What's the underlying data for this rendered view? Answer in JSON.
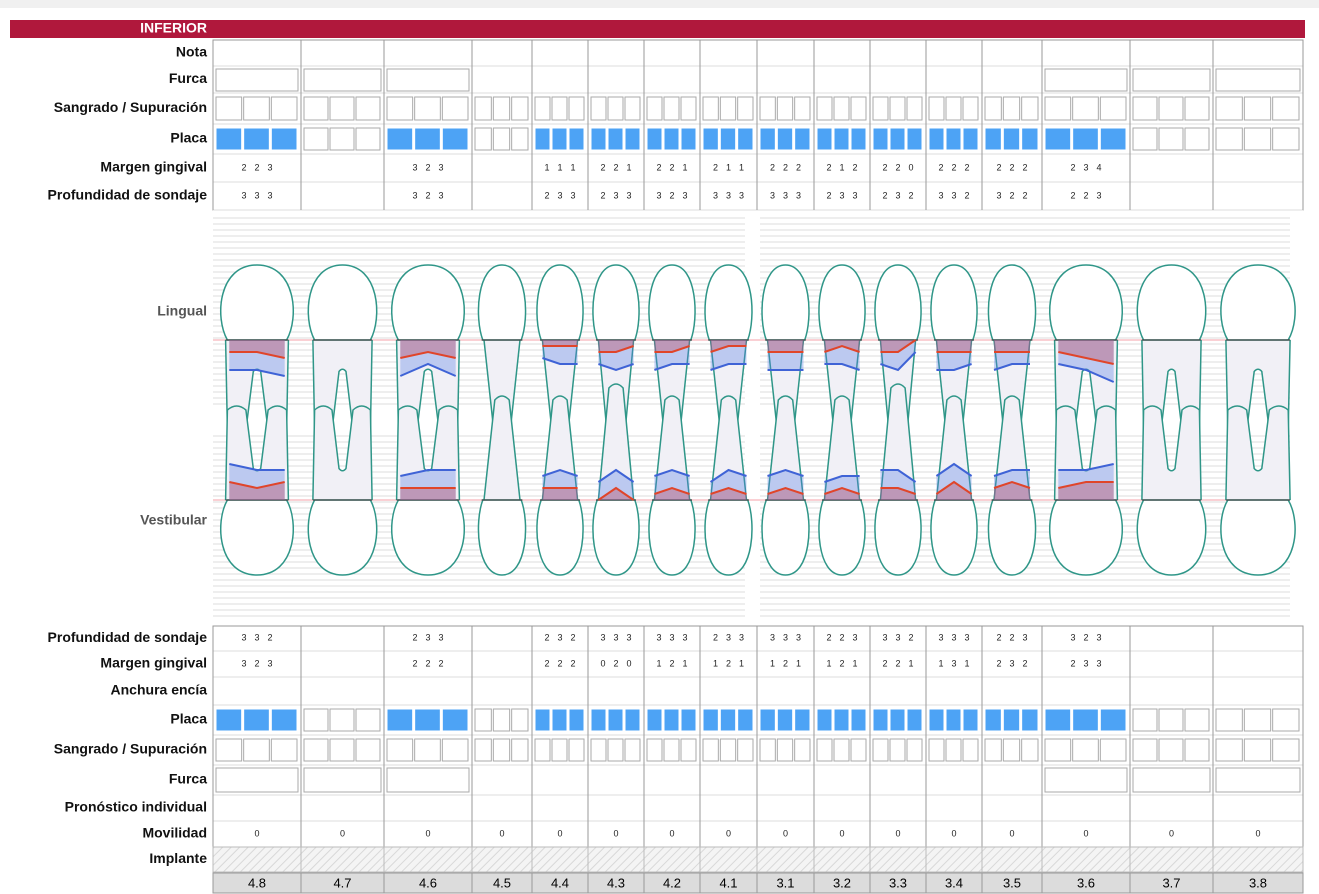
{
  "header": "INFERIOR",
  "top_rows": {
    "nota": "Nota",
    "furca": "Furca",
    "sangrado": "Sangrado / Supuración",
    "placa": "Placa",
    "margen": "Margen gingival",
    "profundidad": "Profundidad de sondaje"
  },
  "lingual": "Lingual",
  "vestibular": "Vestibular",
  "bottom_rows": {
    "profundidad": "Profundidad de sondaje",
    "margen": "Margen gingival",
    "anchura": "Anchura encía",
    "placa": "Placa",
    "sangrado": "Sangrado / Supuración",
    "furca": "Furca",
    "pronostico": "Pronóstico individual",
    "movilidad": "Movilidad",
    "implante": "Implante"
  },
  "teeth": [
    {
      "number": "4.8",
      "top_margen": [
        2,
        2,
        3
      ],
      "top_profundidad": [
        3,
        3,
        3
      ],
      "top_placa": true,
      "bottom_profundidad": [
        3,
        3,
        2
      ],
      "bottom_margen": [
        3,
        2,
        3
      ],
      "bottom_placa": true,
      "movilidad": 0
    },
    {
      "number": "4.7",
      "top_margen": null,
      "top_profundidad": null,
      "top_placa": false,
      "bottom_profundidad": null,
      "bottom_margen": null,
      "bottom_placa": false,
      "movilidad": 0
    },
    {
      "number": "4.6",
      "top_margen": [
        3,
        2,
        3
      ],
      "top_profundidad": [
        3,
        2,
        3
      ],
      "top_placa": true,
      "bottom_profundidad": [
        2,
        3,
        3
      ],
      "bottom_margen": [
        2,
        2,
        2
      ],
      "bottom_placa": true,
      "movilidad": 0
    },
    {
      "number": "4.5",
      "top_margen": null,
      "top_profundidad": null,
      "top_placa": false,
      "bottom_profundidad": null,
      "bottom_margen": null,
      "bottom_placa": false,
      "movilidad": 0
    },
    {
      "number": "4.4",
      "top_margen": [
        1,
        1,
        1
      ],
      "top_profundidad": [
        2,
        3,
        3
      ],
      "top_placa": true,
      "bottom_profundidad": [
        2,
        3,
        2
      ],
      "bottom_margen": [
        2,
        2,
        2
      ],
      "bottom_placa": true,
      "movilidad": 0
    },
    {
      "number": "4.3",
      "top_margen": [
        2,
        2,
        1
      ],
      "top_profundidad": [
        2,
        3,
        3
      ],
      "top_placa": true,
      "bottom_profundidad": [
        3,
        3,
        3
      ],
      "bottom_margen": [
        0,
        2,
        0
      ],
      "bottom_placa": true,
      "movilidad": 0
    },
    {
      "number": "4.2",
      "top_margen": [
        2,
        2,
        1
      ],
      "top_profundidad": [
        3,
        2,
        3
      ],
      "top_placa": true,
      "bottom_profundidad": [
        3,
        3,
        3
      ],
      "bottom_margen": [
        1,
        2,
        1
      ],
      "bottom_placa": true,
      "movilidad": 0
    },
    {
      "number": "4.1",
      "top_margen": [
        2,
        1,
        1
      ],
      "top_profundidad": [
        3,
        3,
        3
      ],
      "top_placa": true,
      "bottom_profundidad": [
        2,
        3,
        3
      ],
      "bottom_margen": [
        1,
        2,
        1
      ],
      "bottom_placa": true,
      "movilidad": 0
    },
    {
      "number": "3.1",
      "top_margen": [
        2,
        2,
        2
      ],
      "top_profundidad": [
        3,
        3,
        3
      ],
      "top_placa": true,
      "bottom_profundidad": [
        3,
        3,
        3
      ],
      "bottom_margen": [
        1,
        2,
        1
      ],
      "bottom_placa": true,
      "movilidad": 0
    },
    {
      "number": "3.2",
      "top_margen": [
        2,
        1,
        2
      ],
      "top_profundidad": [
        2,
        3,
        3
      ],
      "top_placa": true,
      "bottom_profundidad": [
        2,
        2,
        3
      ],
      "bottom_margen": [
        1,
        2,
        1
      ],
      "bottom_placa": true,
      "movilidad": 0
    },
    {
      "number": "3.3",
      "top_margen": [
        2,
        2,
        0
      ],
      "top_profundidad": [
        2,
        3,
        2
      ],
      "top_placa": true,
      "bottom_profundidad": [
        3,
        3,
        2
      ],
      "bottom_margen": [
        2,
        2,
        1
      ],
      "bottom_placa": true,
      "movilidad": 0
    },
    {
      "number": "3.4",
      "top_margen": [
        2,
        2,
        2
      ],
      "top_profundidad": [
        3,
        3,
        2
      ],
      "top_placa": true,
      "bottom_profundidad": [
        3,
        3,
        3
      ],
      "bottom_margen": [
        1,
        3,
        1
      ],
      "bottom_placa": true,
      "movilidad": 0
    },
    {
      "number": "3.5",
      "top_margen": [
        2,
        2,
        2
      ],
      "top_profundidad": [
        3,
        2,
        2
      ],
      "top_placa": true,
      "bottom_profundidad": [
        2,
        2,
        3
      ],
      "bottom_margen": [
        2,
        3,
        2
      ],
      "bottom_placa": true,
      "movilidad": 0
    },
    {
      "number": "3.6",
      "top_margen": [
        2,
        3,
        4
      ],
      "top_profundidad": [
        2,
        2,
        3
      ],
      "top_placa": true,
      "bottom_profundidad": [
        3,
        2,
        3
      ],
      "bottom_margen": [
        2,
        3,
        3
      ],
      "bottom_placa": true,
      "movilidad": 0
    },
    {
      "number": "3.7",
      "top_margen": null,
      "top_profundidad": null,
      "top_placa": false,
      "bottom_profundidad": null,
      "bottom_margen": null,
      "bottom_placa": false,
      "movilidad": 0
    },
    {
      "number": "3.8",
      "top_margen": null,
      "top_profundidad": null,
      "top_placa": false,
      "bottom_profundidad": null,
      "bottom_margen": null,
      "bottom_placa": false,
      "movilidad": 0
    }
  ]
}
